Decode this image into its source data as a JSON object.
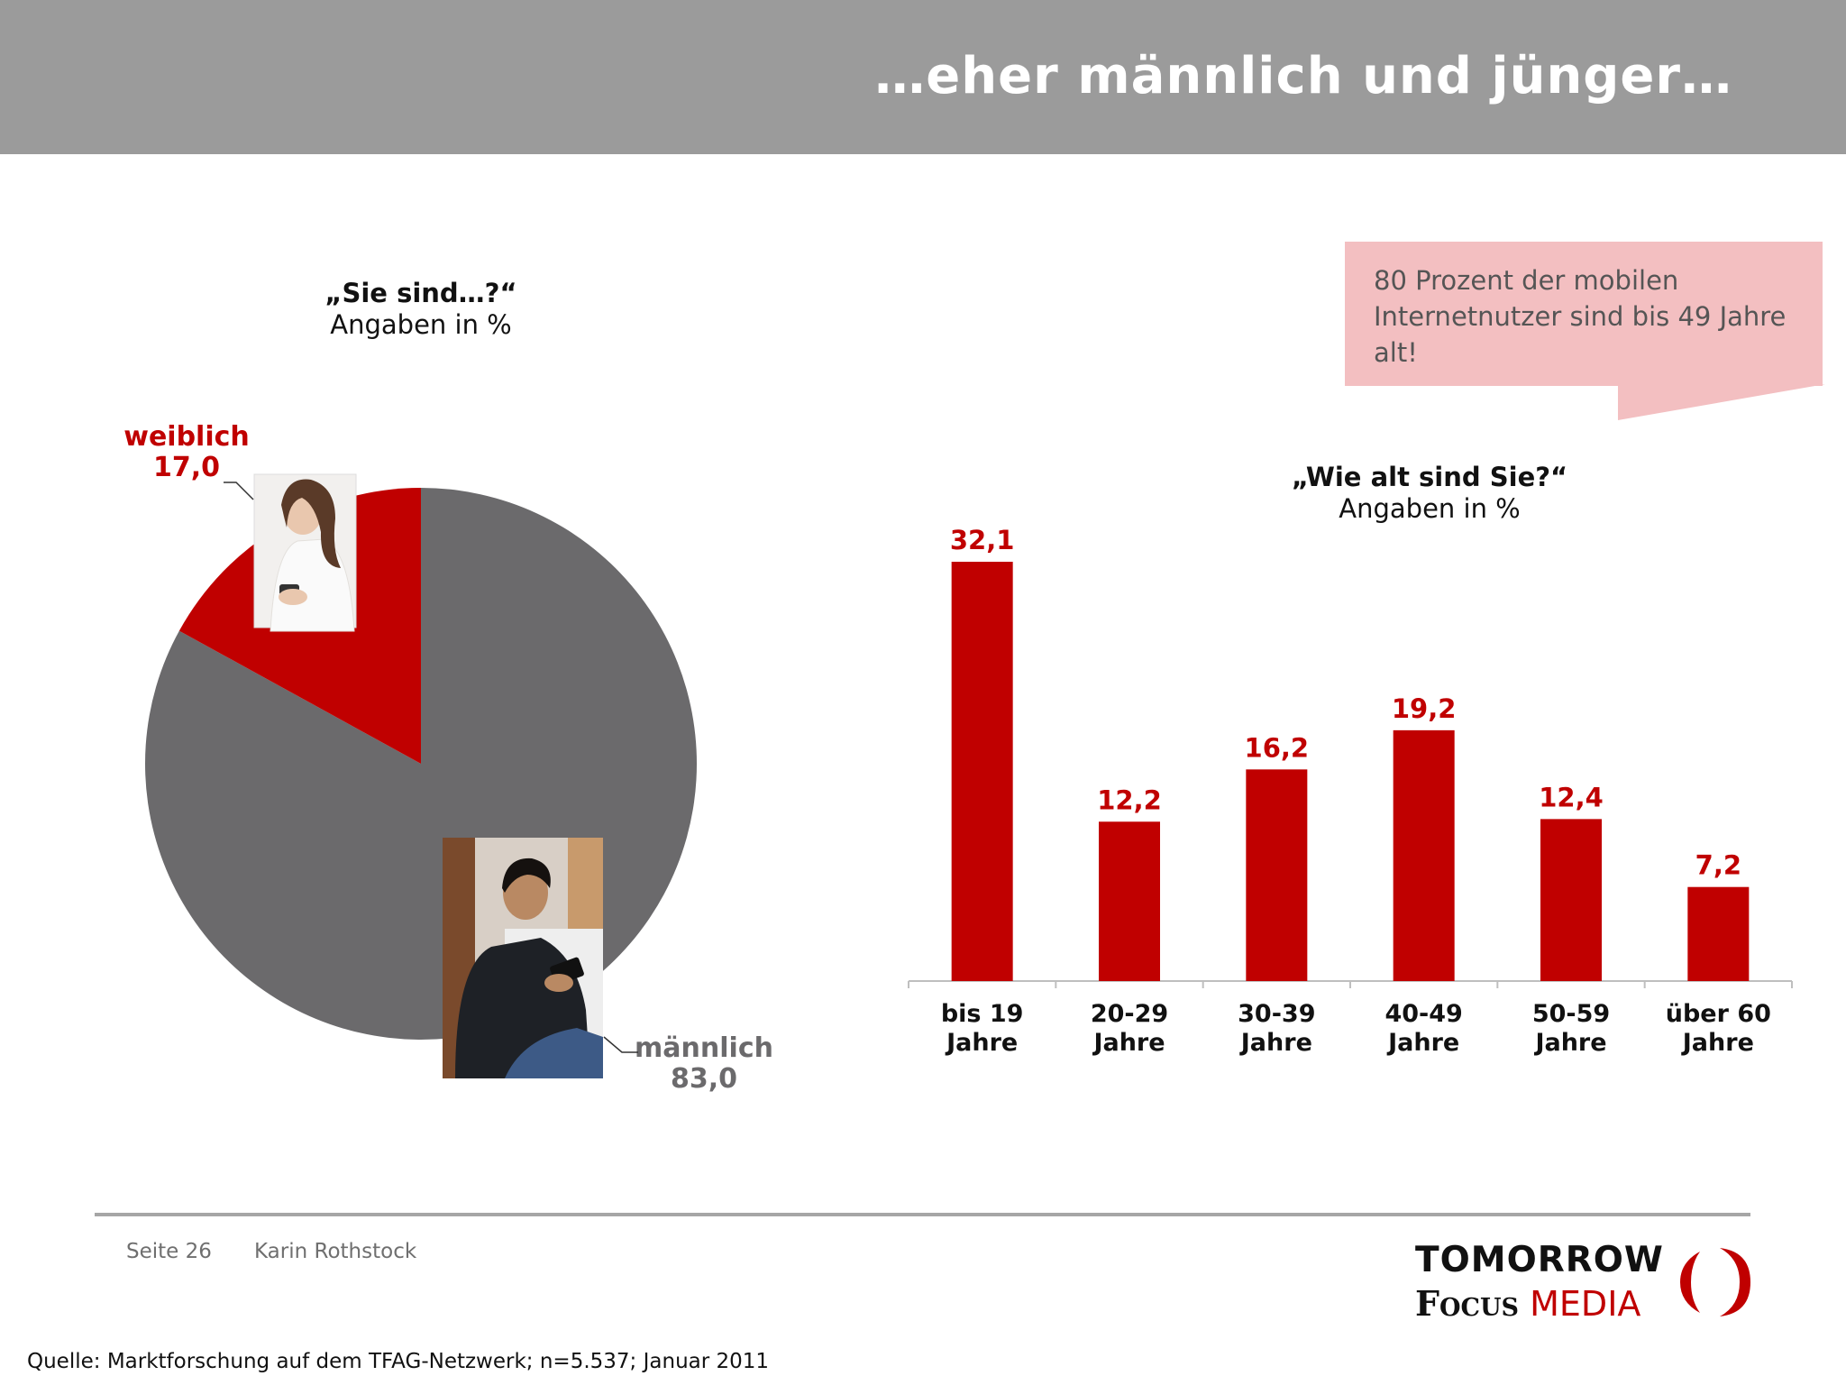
{
  "title": "…eher männlich und jünger…",
  "callout": "80 Prozent der mobilen Internetnutzer sind bis 49 Jahre alt!",
  "colors": {
    "accent": "#c00000",
    "neutral": "#6b6a6c",
    "header": "#9b9b9b",
    "callout": "#f3bfc1"
  },
  "images": {
    "woman": "woman-with-phone-photo",
    "man": "man-with-phone-photo"
  },
  "chart_data": [
    {
      "type": "pie",
      "title": "„Sie sind…?“",
      "subtitle": "Angaben in %",
      "slices": [
        {
          "label": "weiblich",
          "value": 17.0,
          "display": "17,0",
          "color": "#c00000"
        },
        {
          "label": "männlich",
          "value": 83.0,
          "display": "83,0",
          "color": "#6b6a6c"
        }
      ]
    },
    {
      "type": "bar",
      "title": "„Wie alt sind Sie?“",
      "subtitle": "Angaben in %",
      "categories": [
        "bis 19 Jahre",
        "20-29 Jahre",
        "30-39 Jahre",
        "40-49 Jahre",
        "50-59 Jahre",
        "über 60 Jahre"
      ],
      "category_lines": [
        [
          "bis 19",
          "Jahre"
        ],
        [
          "20-29",
          "Jahre"
        ],
        [
          "30-39",
          "Jahre"
        ],
        [
          "40-49",
          "Jahre"
        ],
        [
          "50-59",
          "Jahre"
        ],
        [
          "über 60",
          "Jahre"
        ]
      ],
      "values": [
        32.1,
        12.2,
        16.2,
        19.2,
        12.4,
        7.2
      ],
      "value_labels": [
        "32,1",
        "12,2",
        "16,2",
        "19,2",
        "12,4",
        "7,2"
      ],
      "color": "#c00000",
      "grid": false
    }
  ],
  "footer": {
    "page": "Seite 26",
    "author": "Karin Rothstock",
    "source": "Quelle: Marktforschung auf dem TFAG-Netzwerk; n=5.537; Januar 2011",
    "logo_line1": "TOMORROW",
    "logo_focus": "Focus",
    "logo_media": "MEDIA"
  }
}
